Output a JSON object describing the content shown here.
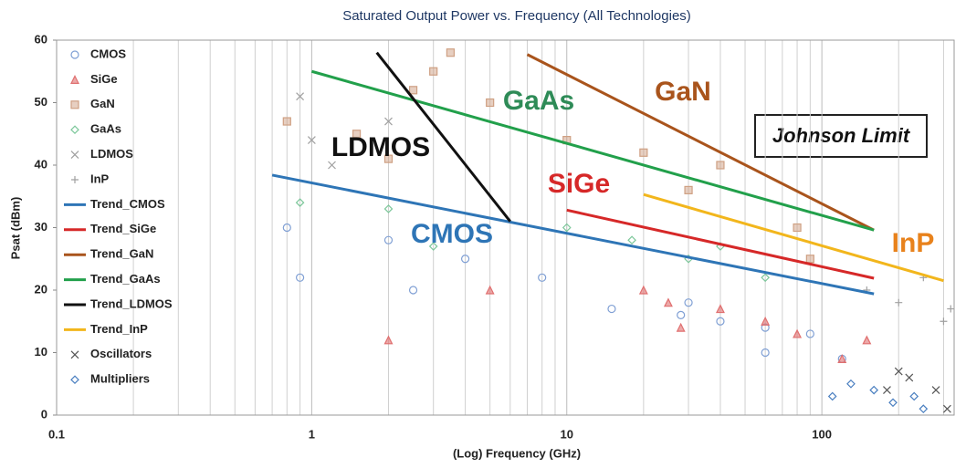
{
  "chart_data": {
    "type": "scatter",
    "title": "Saturated Output Power vs. Frequency (All Technologies)",
    "x_label": "(Log) Frequency (GHz)",
    "y_label": "Psat (dBm)",
    "x_scale": "log",
    "xlim": [
      0.1,
      330
    ],
    "xticks": [
      0.1,
      1,
      10,
      100
    ],
    "ylim": [
      0,
      60
    ],
    "yticks": [
      0,
      10,
      20,
      30,
      40,
      50,
      60
    ],
    "grid": "x-minor",
    "legend": "upper left",
    "series": [
      {
        "name": "CMOS",
        "marker": "circle",
        "color": "#7f9fd4",
        "x": [
          0.8,
          0.9,
          2,
          2.5,
          4,
          8,
          15,
          28,
          40,
          60,
          60,
          90,
          120,
          30
        ],
        "values": [
          30,
          22,
          28,
          20,
          25,
          22,
          17,
          16,
          15,
          14,
          10,
          13,
          9,
          18
        ]
      },
      {
        "name": "SiGe",
        "marker": "triangle",
        "color": "#e07070",
        "x": [
          2,
          5,
          20,
          25,
          28,
          40,
          60,
          80,
          150,
          120
        ],
        "values": [
          12,
          20,
          20,
          18,
          14,
          17,
          15,
          13,
          12,
          9
        ]
      },
      {
        "name": "GaN",
        "marker": "square",
        "color": "#cfa083",
        "x": [
          0.8,
          1.5,
          2,
          2.5,
          3,
          3.5,
          5,
          10,
          20,
          30,
          40,
          80,
          90
        ],
        "values": [
          47,
          45,
          41,
          52,
          55,
          58,
          50,
          44,
          42,
          36,
          40,
          30,
          25
        ]
      },
      {
        "name": "GaAs",
        "marker": "diamond",
        "color": "#7cc79a",
        "x": [
          0.9,
          2,
          3,
          10,
          18,
          30,
          40,
          60
        ],
        "values": [
          34,
          33,
          27,
          30,
          28,
          25,
          27,
          22
        ]
      },
      {
        "name": "LDMOS",
        "marker": "x",
        "color": "#a0a0a0",
        "x": [
          0.9,
          1,
          1.2,
          2
        ],
        "values": [
          51,
          44,
          40,
          47
        ]
      },
      {
        "name": "InP",
        "marker": "plus",
        "color": "#a0a0a0",
        "x": [
          150,
          200,
          250,
          300,
          320
        ],
        "values": [
          20,
          18,
          22,
          15,
          17
        ]
      },
      {
        "name": "Trend_CMOS",
        "marker": "line",
        "color": "#2e75b6",
        "x": [
          0.7,
          160
        ],
        "values": [
          38.4,
          19.4
        ]
      },
      {
        "name": "Trend_SiGe",
        "marker": "line",
        "color": "#d62828",
        "x": [
          10,
          160
        ],
        "values": [
          32.8,
          21.9
        ]
      },
      {
        "name": "Trend_GaN",
        "marker": "line",
        "color": "#a9541c",
        "x": [
          7,
          160
        ],
        "values": [
          57.7,
          29.6
        ]
      },
      {
        "name": "Trend_GaAs",
        "marker": "line",
        "color": "#22a04b",
        "x": [
          1,
          160
        ],
        "values": [
          55,
          29.6
        ]
      },
      {
        "name": "Trend_LDMOS",
        "marker": "line",
        "color": "#111111",
        "x": [
          1.8,
          6
        ],
        "values": [
          58,
          31
        ]
      },
      {
        "name": "Trend_InP",
        "marker": "line",
        "color": "#f2b61c",
        "x": [
          20,
          300
        ],
        "values": [
          35.3,
          21.5
        ]
      },
      {
        "name": "Oscillators",
        "marker": "x",
        "color": "#555555",
        "x": [
          180,
          200,
          220,
          280,
          310
        ],
        "values": [
          4,
          7,
          6,
          4,
          1
        ]
      },
      {
        "name": "Multipliers",
        "marker": "diamond",
        "color": "#4a7fc0",
        "x": [
          110,
          130,
          160,
          190,
          230,
          250
        ],
        "values": [
          3,
          5,
          4,
          2,
          3,
          1
        ]
      }
    ],
    "annotations": [
      {
        "text": "CMOS",
        "color": "#2e75b6"
      },
      {
        "text": "SiGe",
        "color": "#d62828"
      },
      {
        "text": "GaN",
        "color": "#a9541c"
      },
      {
        "text": "GaAs",
        "color": "#2e8b57"
      },
      {
        "text": "LDMOS",
        "color": "#111111"
      },
      {
        "text": "InP",
        "color": "#e8821c"
      }
    ],
    "box_label": "Johnson Limit"
  }
}
